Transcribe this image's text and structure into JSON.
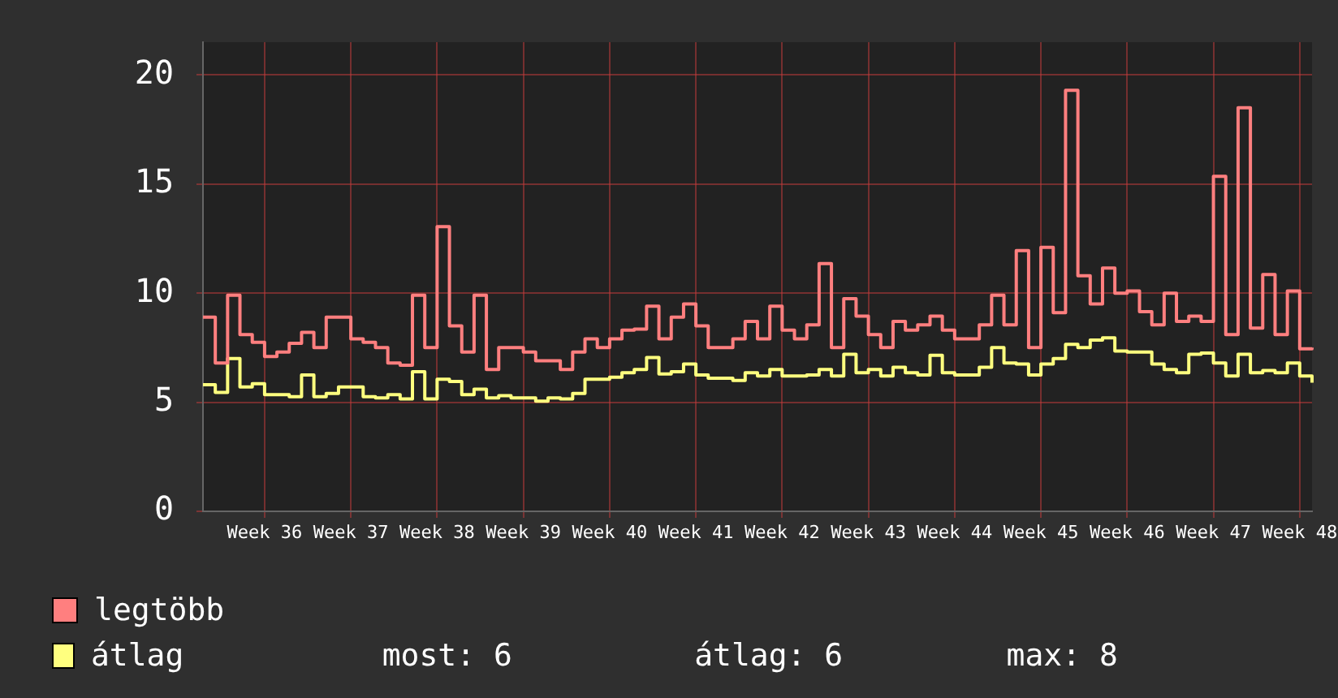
{
  "chart_data": {
    "type": "step",
    "categories": [
      null,
      null,
      null,
      null,
      null,
      "Week 36",
      null,
      null,
      null,
      null,
      null,
      null,
      "Week 37",
      null,
      null,
      null,
      null,
      null,
      null,
      "Week 38",
      null,
      null,
      null,
      null,
      null,
      null,
      "Week 39",
      null,
      null,
      null,
      null,
      null,
      null,
      "Week 40",
      null,
      null,
      null,
      null,
      null,
      null,
      "Week 41",
      null,
      null,
      null,
      null,
      null,
      null,
      "Week 42",
      null,
      null,
      null,
      null,
      null,
      null,
      "Week 43",
      null,
      null,
      null,
      null,
      null,
      null,
      "Week 44",
      null,
      null,
      null,
      null,
      null,
      null,
      "Week 45",
      null,
      null,
      null,
      null,
      null,
      null,
      "Week 46",
      null,
      null,
      null,
      null,
      null,
      null,
      "Week 47",
      null,
      null,
      null,
      null,
      null,
      null,
      "Week 48",
      null
    ],
    "series": [
      {
        "name": "legtöbb",
        "color": "#ff7f7f",
        "values": [
          8.9,
          6.8,
          9.9,
          8.1,
          7.75,
          7.1,
          7.3,
          7.7,
          8.2,
          7.5,
          8.9,
          8.9,
          7.9,
          7.75,
          7.5,
          6.8,
          6.7,
          9.9,
          7.5,
          13.05,
          8.5,
          7.3,
          9.9,
          6.5,
          7.5,
          7.5,
          7.3,
          6.9,
          6.9,
          6.5,
          7.3,
          7.9,
          7.5,
          7.9,
          8.3,
          8.35,
          9.4,
          7.9,
          8.9,
          9.5,
          8.5,
          7.5,
          7.5,
          7.9,
          8.7,
          7.9,
          9.4,
          8.3,
          7.9,
          8.55,
          11.35,
          7.5,
          9.75,
          8.95,
          8.1,
          7.5,
          8.7,
          8.3,
          8.55,
          8.95,
          8.3,
          7.9,
          7.9,
          8.55,
          9.9,
          8.55,
          11.95,
          7.5,
          12.1,
          9.1,
          19.3,
          10.8,
          9.5,
          11.15,
          10.0,
          10.1,
          9.15,
          8.55,
          10.0,
          8.7,
          8.95,
          8.7,
          15.35,
          8.1,
          18.5,
          8.4,
          10.85,
          8.1,
          10.1,
          7.45,
          7.5
        ]
      },
      {
        "name": "átlag",
        "color": "#ffff7f",
        "values": [
          5.8,
          5.45,
          7.0,
          5.7,
          5.85,
          5.35,
          5.35,
          5.25,
          6.25,
          5.25,
          5.4,
          5.7,
          5.7,
          5.25,
          5.2,
          5.35,
          5.15,
          6.4,
          5.15,
          6.05,
          5.95,
          5.35,
          5.6,
          5.2,
          5.3,
          5.2,
          5.2,
          5.05,
          5.2,
          5.15,
          5.4,
          6.05,
          6.05,
          6.15,
          6.35,
          6.5,
          7.05,
          6.3,
          6.4,
          6.75,
          6.25,
          6.1,
          6.1,
          6.0,
          6.35,
          6.2,
          6.5,
          6.2,
          6.2,
          6.25,
          6.5,
          6.2,
          7.2,
          6.35,
          6.5,
          6.2,
          6.6,
          6.35,
          6.25,
          7.15,
          6.35,
          6.25,
          6.25,
          6.6,
          7.5,
          6.8,
          6.75,
          6.25,
          6.75,
          7.0,
          7.65,
          7.5,
          7.85,
          7.95,
          7.35,
          7.3,
          7.3,
          6.75,
          6.5,
          6.35,
          7.2,
          7.25,
          6.8,
          6.2,
          7.2,
          6.35,
          6.45,
          6.35,
          6.8,
          6.2,
          5.9
        ]
      }
    ],
    "ylim": [
      0,
      21.5
    ],
    "yticks": [
      0,
      5,
      10,
      15,
      20
    ],
    "grid": true,
    "legend": "bottom",
    "annotations": [
      "most: 6",
      "átlag: 6",
      "max: 8"
    ]
  }
}
